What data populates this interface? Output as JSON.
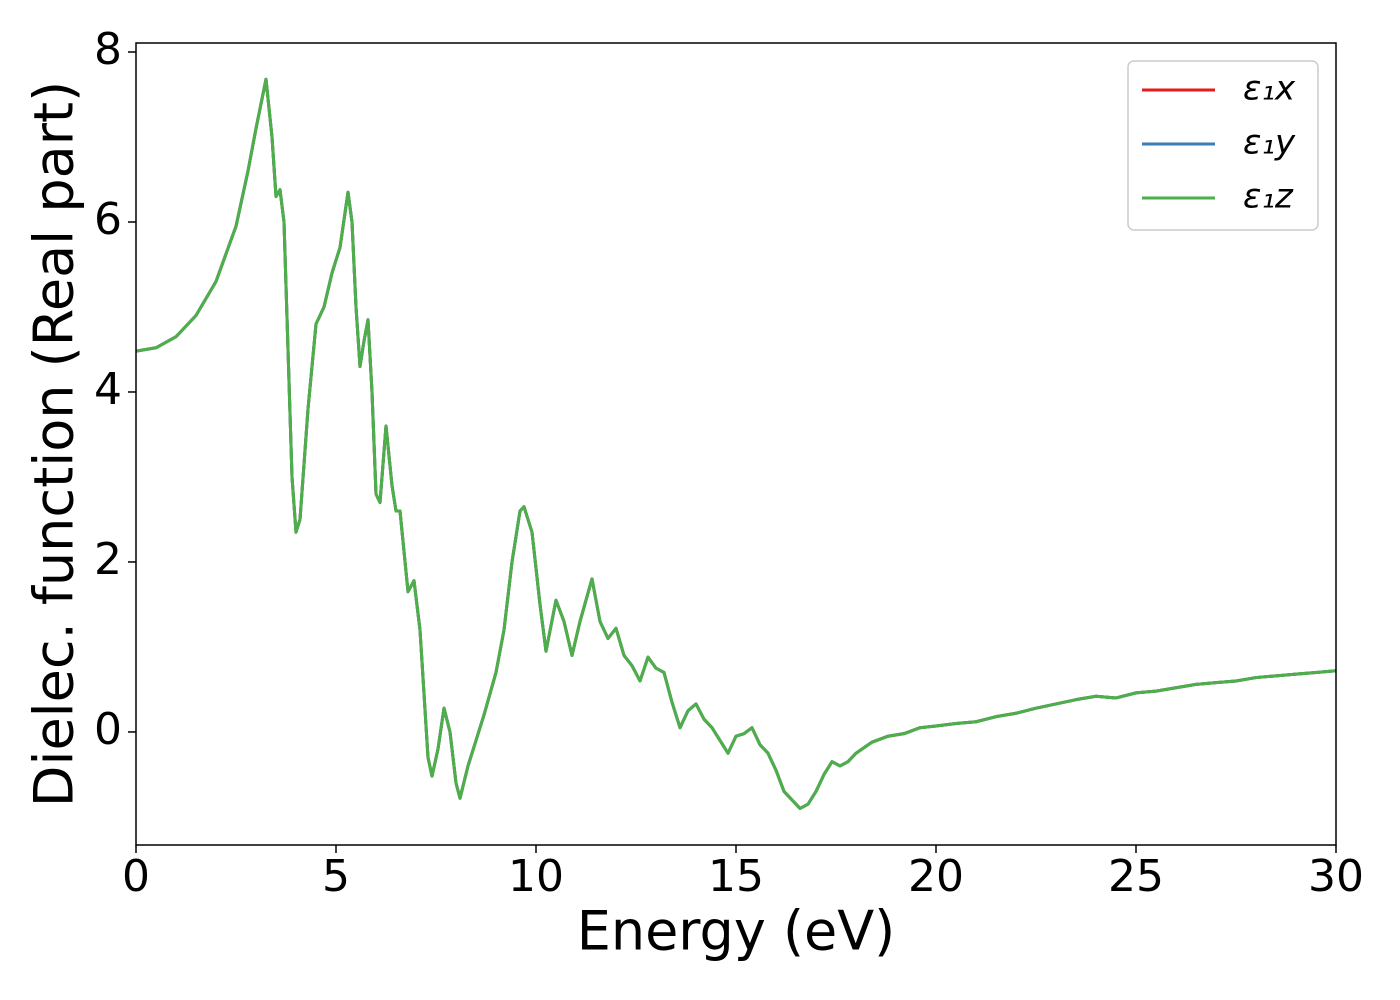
{
  "chart_data": {
    "type": "line",
    "xlabel": "Energy (eV)",
    "ylabel": "Dielec. function (Real part)",
    "x": [
      0,
      0.5,
      1,
      1.5,
      2,
      2.5,
      2.8,
      3.0,
      3.25,
      3.4,
      3.5,
      3.6,
      3.7,
      3.8,
      3.9,
      4.0,
      4.1,
      4.3,
      4.5,
      4.7,
      4.9,
      5.1,
      5.3,
      5.4,
      5.5,
      5.6,
      5.7,
      5.8,
      5.9,
      6.0,
      6.1,
      6.25,
      6.4,
      6.5,
      6.6,
      6.8,
      6.95,
      7.1,
      7.3,
      7.4,
      7.55,
      7.7,
      7.85,
      8.0,
      8.1,
      8.3,
      8.5,
      8.7,
      9.0,
      9.2,
      9.4,
      9.6,
      9.7,
      9.9,
      10.1,
      10.25,
      10.5,
      10.7,
      10.9,
      11.1,
      11.4,
      11.6,
      11.8,
      12.0,
      12.2,
      12.4,
      12.6,
      12.8,
      13.0,
      13.2,
      13.4,
      13.6,
      13.8,
      14.0,
      14.2,
      14.4,
      14.6,
      14.8,
      15.0,
      15.2,
      15.4,
      15.6,
      15.8,
      16.0,
      16.2,
      16.4,
      16.6,
      16.8,
      17.0,
      17.2,
      17.4,
      17.6,
      17.8,
      18.0,
      18.4,
      18.8,
      19.2,
      19.6,
      20.0,
      20.5,
      21.0,
      21.5,
      22.0,
      22.5,
      23.0,
      23.5,
      24.0,
      24.5,
      25.0,
      25.5,
      26.0,
      26.5,
      27.0,
      27.5,
      28.0,
      28.5,
      29.0,
      29.5,
      30.0
    ],
    "series": [
      {
        "name": "ε₁x",
        "color": "#e41a1c",
        "values": [
          4.48,
          4.52,
          4.65,
          4.9,
          5.3,
          5.95,
          6.6,
          7.1,
          7.68,
          7.0,
          6.3,
          6.38,
          6.0,
          4.5,
          3.0,
          2.35,
          2.5,
          3.8,
          4.8,
          5.0,
          5.4,
          5.7,
          6.35,
          6.0,
          5.0,
          4.3,
          4.6,
          4.85,
          4.0,
          2.8,
          2.7,
          3.6,
          2.9,
          2.6,
          2.6,
          1.65,
          1.78,
          1.2,
          -0.3,
          -0.52,
          -0.2,
          0.28,
          0.0,
          -0.6,
          -0.78,
          -0.4,
          -0.1,
          0.2,
          0.7,
          1.2,
          2.0,
          2.6,
          2.65,
          2.35,
          1.5,
          0.95,
          1.55,
          1.3,
          0.9,
          1.3,
          1.8,
          1.3,
          1.1,
          1.22,
          0.9,
          0.78,
          0.6,
          0.88,
          0.75,
          0.7,
          0.35,
          0.05,
          0.25,
          0.33,
          0.15,
          0.05,
          -0.1,
          -0.25,
          -0.05,
          -0.02,
          0.05,
          -0.15,
          -0.25,
          -0.45,
          -0.7,
          -0.8,
          -0.9,
          -0.85,
          -0.7,
          -0.5,
          -0.35,
          -0.4,
          -0.35,
          -0.25,
          -0.12,
          -0.05,
          -0.02,
          0.05,
          0.07,
          0.1,
          0.12,
          0.18,
          0.22,
          0.28,
          0.33,
          0.38,
          0.42,
          0.4,
          0.46,
          0.48,
          0.52,
          0.56,
          0.58,
          0.6,
          0.64,
          0.66,
          0.68,
          0.7,
          0.72
        ]
      },
      {
        "name": "ε₁y",
        "color": "#377eb8",
        "values": [
          4.48,
          4.52,
          4.65,
          4.9,
          5.3,
          5.95,
          6.6,
          7.1,
          7.68,
          7.0,
          6.3,
          6.38,
          6.0,
          4.5,
          3.0,
          2.35,
          2.5,
          3.8,
          4.8,
          5.0,
          5.4,
          5.7,
          6.35,
          6.0,
          5.0,
          4.3,
          4.6,
          4.85,
          4.0,
          2.8,
          2.7,
          3.6,
          2.9,
          2.6,
          2.6,
          1.65,
          1.78,
          1.2,
          -0.3,
          -0.52,
          -0.2,
          0.28,
          0.0,
          -0.6,
          -0.78,
          -0.4,
          -0.1,
          0.2,
          0.7,
          1.2,
          2.0,
          2.6,
          2.65,
          2.35,
          1.5,
          0.95,
          1.55,
          1.3,
          0.9,
          1.3,
          1.8,
          1.3,
          1.1,
          1.22,
          0.9,
          0.78,
          0.6,
          0.88,
          0.75,
          0.7,
          0.35,
          0.05,
          0.25,
          0.33,
          0.15,
          0.05,
          -0.1,
          -0.25,
          -0.05,
          -0.02,
          0.05,
          -0.15,
          -0.25,
          -0.45,
          -0.7,
          -0.8,
          -0.9,
          -0.85,
          -0.7,
          -0.5,
          -0.35,
          -0.4,
          -0.35,
          -0.25,
          -0.12,
          -0.05,
          -0.02,
          0.05,
          0.07,
          0.1,
          0.12,
          0.18,
          0.22,
          0.28,
          0.33,
          0.38,
          0.42,
          0.4,
          0.46,
          0.48,
          0.52,
          0.56,
          0.58,
          0.6,
          0.64,
          0.66,
          0.68,
          0.7,
          0.72
        ]
      },
      {
        "name": "ε₁z",
        "color": "#4daf4a",
        "values": [
          4.48,
          4.52,
          4.65,
          4.9,
          5.3,
          5.95,
          6.6,
          7.1,
          7.68,
          7.0,
          6.3,
          6.38,
          6.0,
          4.5,
          3.0,
          2.35,
          2.5,
          3.8,
          4.8,
          5.0,
          5.4,
          5.7,
          6.35,
          6.0,
          5.0,
          4.3,
          4.6,
          4.85,
          4.0,
          2.8,
          2.7,
          3.6,
          2.9,
          2.6,
          2.6,
          1.65,
          1.78,
          1.2,
          -0.3,
          -0.52,
          -0.2,
          0.28,
          0.0,
          -0.6,
          -0.78,
          -0.4,
          -0.1,
          0.2,
          0.7,
          1.2,
          2.0,
          2.6,
          2.65,
          2.35,
          1.5,
          0.95,
          1.55,
          1.3,
          0.9,
          1.3,
          1.8,
          1.3,
          1.1,
          1.22,
          0.9,
          0.78,
          0.6,
          0.88,
          0.75,
          0.7,
          0.35,
          0.05,
          0.25,
          0.33,
          0.15,
          0.05,
          -0.1,
          -0.25,
          -0.05,
          -0.02,
          0.05,
          -0.15,
          -0.25,
          -0.45,
          -0.7,
          -0.8,
          -0.9,
          -0.85,
          -0.7,
          -0.5,
          -0.35,
          -0.4,
          -0.35,
          -0.25,
          -0.12,
          -0.05,
          -0.02,
          0.05,
          0.07,
          0.1,
          0.12,
          0.18,
          0.22,
          0.28,
          0.33,
          0.38,
          0.42,
          0.4,
          0.46,
          0.48,
          0.52,
          0.56,
          0.58,
          0.6,
          0.64,
          0.66,
          0.68,
          0.7,
          0.72
        ]
      }
    ],
    "xlim": [
      0,
      30
    ],
    "xticks": [
      0,
      5,
      10,
      15,
      20,
      25,
      30
    ],
    "ylim": [
      -1.33,
      8.106
    ],
    "yticks": [
      0,
      2,
      4,
      6,
      8
    ],
    "legend": "upper right",
    "grid": false
  }
}
